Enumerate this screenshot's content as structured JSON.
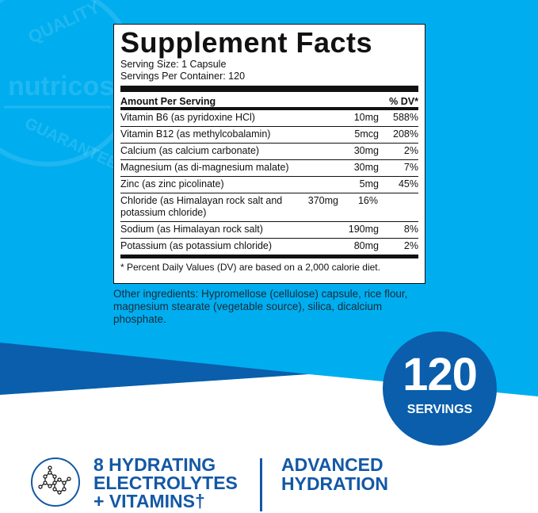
{
  "colors": {
    "light_blue": "#00aeef",
    "dark_blue": "#0a5eab",
    "text_blue": "#1358a6"
  },
  "watermark": {
    "top": "QUALITY",
    "brand": "nutricost",
    "bottom": "GUARANTEED"
  },
  "panel": {
    "title": "Supplement Facts",
    "serving_size": "Serving Size: 1 Capsule",
    "servings_per_container": "Servings Per Container: 120",
    "header_left": "Amount Per Serving",
    "header_right": "% DV*",
    "rows": [
      {
        "name": "Vitamin B6 (as pyridoxine HCl)",
        "amount": "10mg",
        "dv": "588%"
      },
      {
        "name": "Vitamin B12 (as methylcobalamin)",
        "amount": "5mcg",
        "dv": "208%"
      },
      {
        "name": "Calcium (as calcium carbonate)",
        "amount": "30mg",
        "dv": "2%"
      },
      {
        "name": "Magnesium (as di-magnesium malate)",
        "amount": "30mg",
        "dv": "7%"
      },
      {
        "name": "Zinc (as zinc picolinate)",
        "amount": "5mg",
        "dv": "45%"
      },
      {
        "name": "Chloride (as Himalayan rock salt and potassium chloride)",
        "amount": "370mg",
        "dv": "16%"
      },
      {
        "name": "Sodium (as Himalayan rock salt)",
        "amount": "190mg",
        "dv": "8%"
      },
      {
        "name": "Potassium (as potassium chloride)",
        "amount": "80mg",
        "dv": "2%"
      }
    ],
    "footnote": "* Percent Daily Values (DV) are based on a 2,000 calorie diet."
  },
  "other_ingredients": "Other ingredients: Hypromellose (cellulose) capsule, rice flour, magnesium stearate (vegetable source), silica, dicalcium phosphate.",
  "badge": {
    "number": "120",
    "label": "SERVINGS"
  },
  "benefit1": {
    "icon": "molecule-icon",
    "line1": "8 HYDRATING",
    "line2": "ELECTROLYTES",
    "line3": "+ VITAMINS†"
  },
  "benefit2": {
    "line1": "ADVANCED",
    "line2": "HYDRATION"
  }
}
